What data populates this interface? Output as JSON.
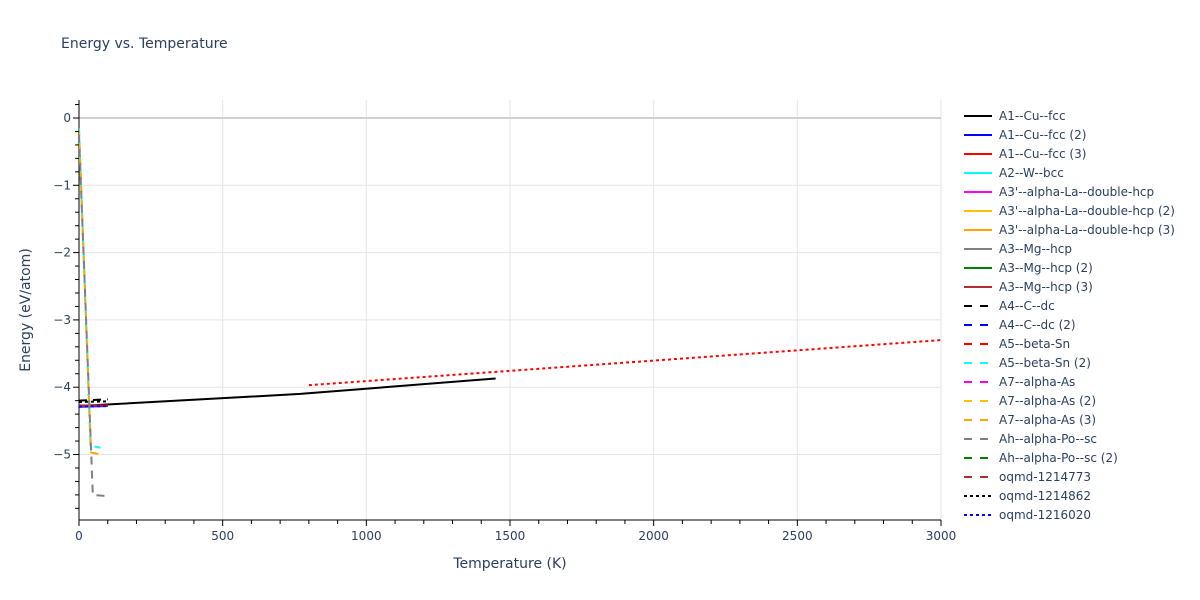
{
  "title": "Energy vs. Temperature",
  "chart_data": {
    "type": "line",
    "title": "Energy vs. Temperature",
    "xlabel": "Temperature (K)",
    "ylabel": "Energy (eV/atom)",
    "xlim": [
      0,
      3000
    ],
    "ylim": [
      -5.95,
      0.25
    ],
    "x_ticks": [
      0,
      500,
      1000,
      1500,
      2000,
      2500,
      3000
    ],
    "x_tick_labels": [
      "0",
      "500",
      "1000",
      "1500",
      "2000",
      "2500",
      "3000"
    ],
    "y_ticks": [
      0,
      -1,
      -2,
      -3,
      -4,
      -5
    ],
    "y_tick_labels": [
      "0",
      "−1",
      "−2",
      "−3",
      "−4",
      "−5"
    ],
    "grid": true,
    "legend_position": "right",
    "series": [
      {
        "name": "A1--Cu--fcc",
        "color": "#000000",
        "dash": "solid",
        "x": [
          0,
          770,
          1450
        ],
        "y": [
          -4.28,
          -4.1,
          -3.87
        ]
      },
      {
        "name": "A1--Cu--fcc (2)",
        "color": "#0000ff",
        "dash": "solid",
        "x": [
          0,
          100
        ],
        "y": [
          -4.29,
          -4.28
        ]
      },
      {
        "name": "A1--Cu--fcc (3)",
        "color": "#ff0000",
        "dash": "solid",
        "x": [
          0,
          100
        ],
        "y": [
          -4.28,
          -4.27
        ]
      },
      {
        "name": "A2--W--bcc",
        "color": "#00ffff",
        "dash": "solid",
        "x": [],
        "y": []
      },
      {
        "name": "A3'--alpha-La--double-hcp",
        "color": "#ff00ff",
        "dash": "solid",
        "x": [],
        "y": []
      },
      {
        "name": "A3'--alpha-La--double-hcp (2)",
        "color": "#ffc000",
        "dash": "solid",
        "x": [],
        "y": []
      },
      {
        "name": "A3'--alpha-La--double-hcp (3)",
        "color": "#ffa500",
        "dash": "solid",
        "x": [],
        "y": []
      },
      {
        "name": "A3--Mg--hcp",
        "color": "#808080",
        "dash": "solid",
        "x": [],
        "y": []
      },
      {
        "name": "A3--Mg--hcp (2)",
        "color": "#008000",
        "dash": "solid",
        "x": [],
        "y": []
      },
      {
        "name": "A3--Mg--hcp (3)",
        "color": "#b03030",
        "dash": "solid",
        "x": [],
        "y": []
      },
      {
        "name": "A4--C--dc",
        "color": "#000000",
        "dash": "dash",
        "x": [
          0,
          100
        ],
        "y": [
          -4.2,
          -4.18
        ]
      },
      {
        "name": "A4--C--dc (2)",
        "color": "#0000ff",
        "dash": "dash",
        "x": [],
        "y": []
      },
      {
        "name": "A5--beta-Sn",
        "color": "#ff0000",
        "dash": "dash",
        "x": [],
        "y": []
      },
      {
        "name": "A5--beta-Sn (2)",
        "color": "#00ffff",
        "dash": "dash",
        "x": [
          0,
          40,
          75
        ],
        "y": [
          -0.15,
          -4.87,
          -4.9
        ]
      },
      {
        "name": "A7--alpha-As",
        "color": "#ff00ff",
        "dash": "dash",
        "x": [],
        "y": []
      },
      {
        "name": "A7--alpha-As (2)",
        "color": "#ffc000",
        "dash": "dash",
        "x": [],
        "y": []
      },
      {
        "name": "A7--alpha-As (3)",
        "color": "#ffa500",
        "dash": "dash",
        "x": [
          0,
          42,
          75
        ],
        "y": [
          -0.18,
          -4.97,
          -5.0
        ]
      },
      {
        "name": "Ah--alpha-Po--sc",
        "color": "#808080",
        "dash": "dash",
        "x": [
          0,
          48,
          100
        ],
        "y": [
          -0.25,
          -5.6,
          -5.62
        ]
      },
      {
        "name": "Ah--alpha-Po--sc (2)",
        "color": "#008000",
        "dash": "dash",
        "x": [],
        "y": []
      },
      {
        "name": "oqmd-1214773",
        "color": "#b03030",
        "dash": "dash",
        "x": [
          0,
          100
        ],
        "y": [
          -4.27,
          -4.27
        ]
      },
      {
        "name": "oqmd-1214862",
        "color": "#000000",
        "dash": "dot",
        "x": [
          0,
          100
        ],
        "y": [
          -4.22,
          -4.21
        ]
      },
      {
        "name": "oqmd-1216020",
        "color": "#0000ff",
        "dash": "dot",
        "x": [
          0,
          100
        ],
        "y": [
          -4.29,
          -4.28
        ]
      },
      {
        "name": "(unlisted red dotted)",
        "color": "#ff0000",
        "dash": "dot",
        "x": [
          800,
          3000
        ],
        "y": [
          -3.97,
          -3.3
        ]
      }
    ]
  },
  "legend": {
    "items": [
      {
        "label": "A1--Cu--fcc",
        "color": "#000000",
        "dash": "solid"
      },
      {
        "label": "A1--Cu--fcc (2)",
        "color": "#0000ff",
        "dash": "solid"
      },
      {
        "label": "A1--Cu--fcc (3)",
        "color": "#ff0000",
        "dash": "solid"
      },
      {
        "label": "A2--W--bcc",
        "color": "#00ffff",
        "dash": "solid"
      },
      {
        "label": "A3'--alpha-La--double-hcp",
        "color": "#ff00ff",
        "dash": "solid"
      },
      {
        "label": "A3'--alpha-La--double-hcp (2)",
        "color": "#ffc000",
        "dash": "solid"
      },
      {
        "label": "A3'--alpha-La--double-hcp (3)",
        "color": "#ffa500",
        "dash": "solid"
      },
      {
        "label": "A3--Mg--hcp",
        "color": "#808080",
        "dash": "solid"
      },
      {
        "label": "A3--Mg--hcp (2)",
        "color": "#008000",
        "dash": "solid"
      },
      {
        "label": "A3--Mg--hcp (3)",
        "color": "#b03030",
        "dash": "solid"
      },
      {
        "label": "A4--C--dc",
        "color": "#000000",
        "dash": "dash"
      },
      {
        "label": "A4--C--dc (2)",
        "color": "#0000ff",
        "dash": "dash"
      },
      {
        "label": "A5--beta-Sn",
        "color": "#ff0000",
        "dash": "dash"
      },
      {
        "label": "A5--beta-Sn (2)",
        "color": "#00ffff",
        "dash": "dash"
      },
      {
        "label": "A7--alpha-As",
        "color": "#ff00ff",
        "dash": "dash"
      },
      {
        "label": "A7--alpha-As (2)",
        "color": "#ffc000",
        "dash": "dash"
      },
      {
        "label": "A7--alpha-As (3)",
        "color": "#ffa500",
        "dash": "dash"
      },
      {
        "label": "Ah--alpha-Po--sc",
        "color": "#808080",
        "dash": "dash"
      },
      {
        "label": "Ah--alpha-Po--sc (2)",
        "color": "#008000",
        "dash": "dash"
      },
      {
        "label": "oqmd-1214773",
        "color": "#b03030",
        "dash": "dash"
      },
      {
        "label": "oqmd-1214862",
        "color": "#000000",
        "dash": "dot"
      },
      {
        "label": "oqmd-1216020",
        "color": "#0000ff",
        "dash": "dot"
      }
    ]
  }
}
